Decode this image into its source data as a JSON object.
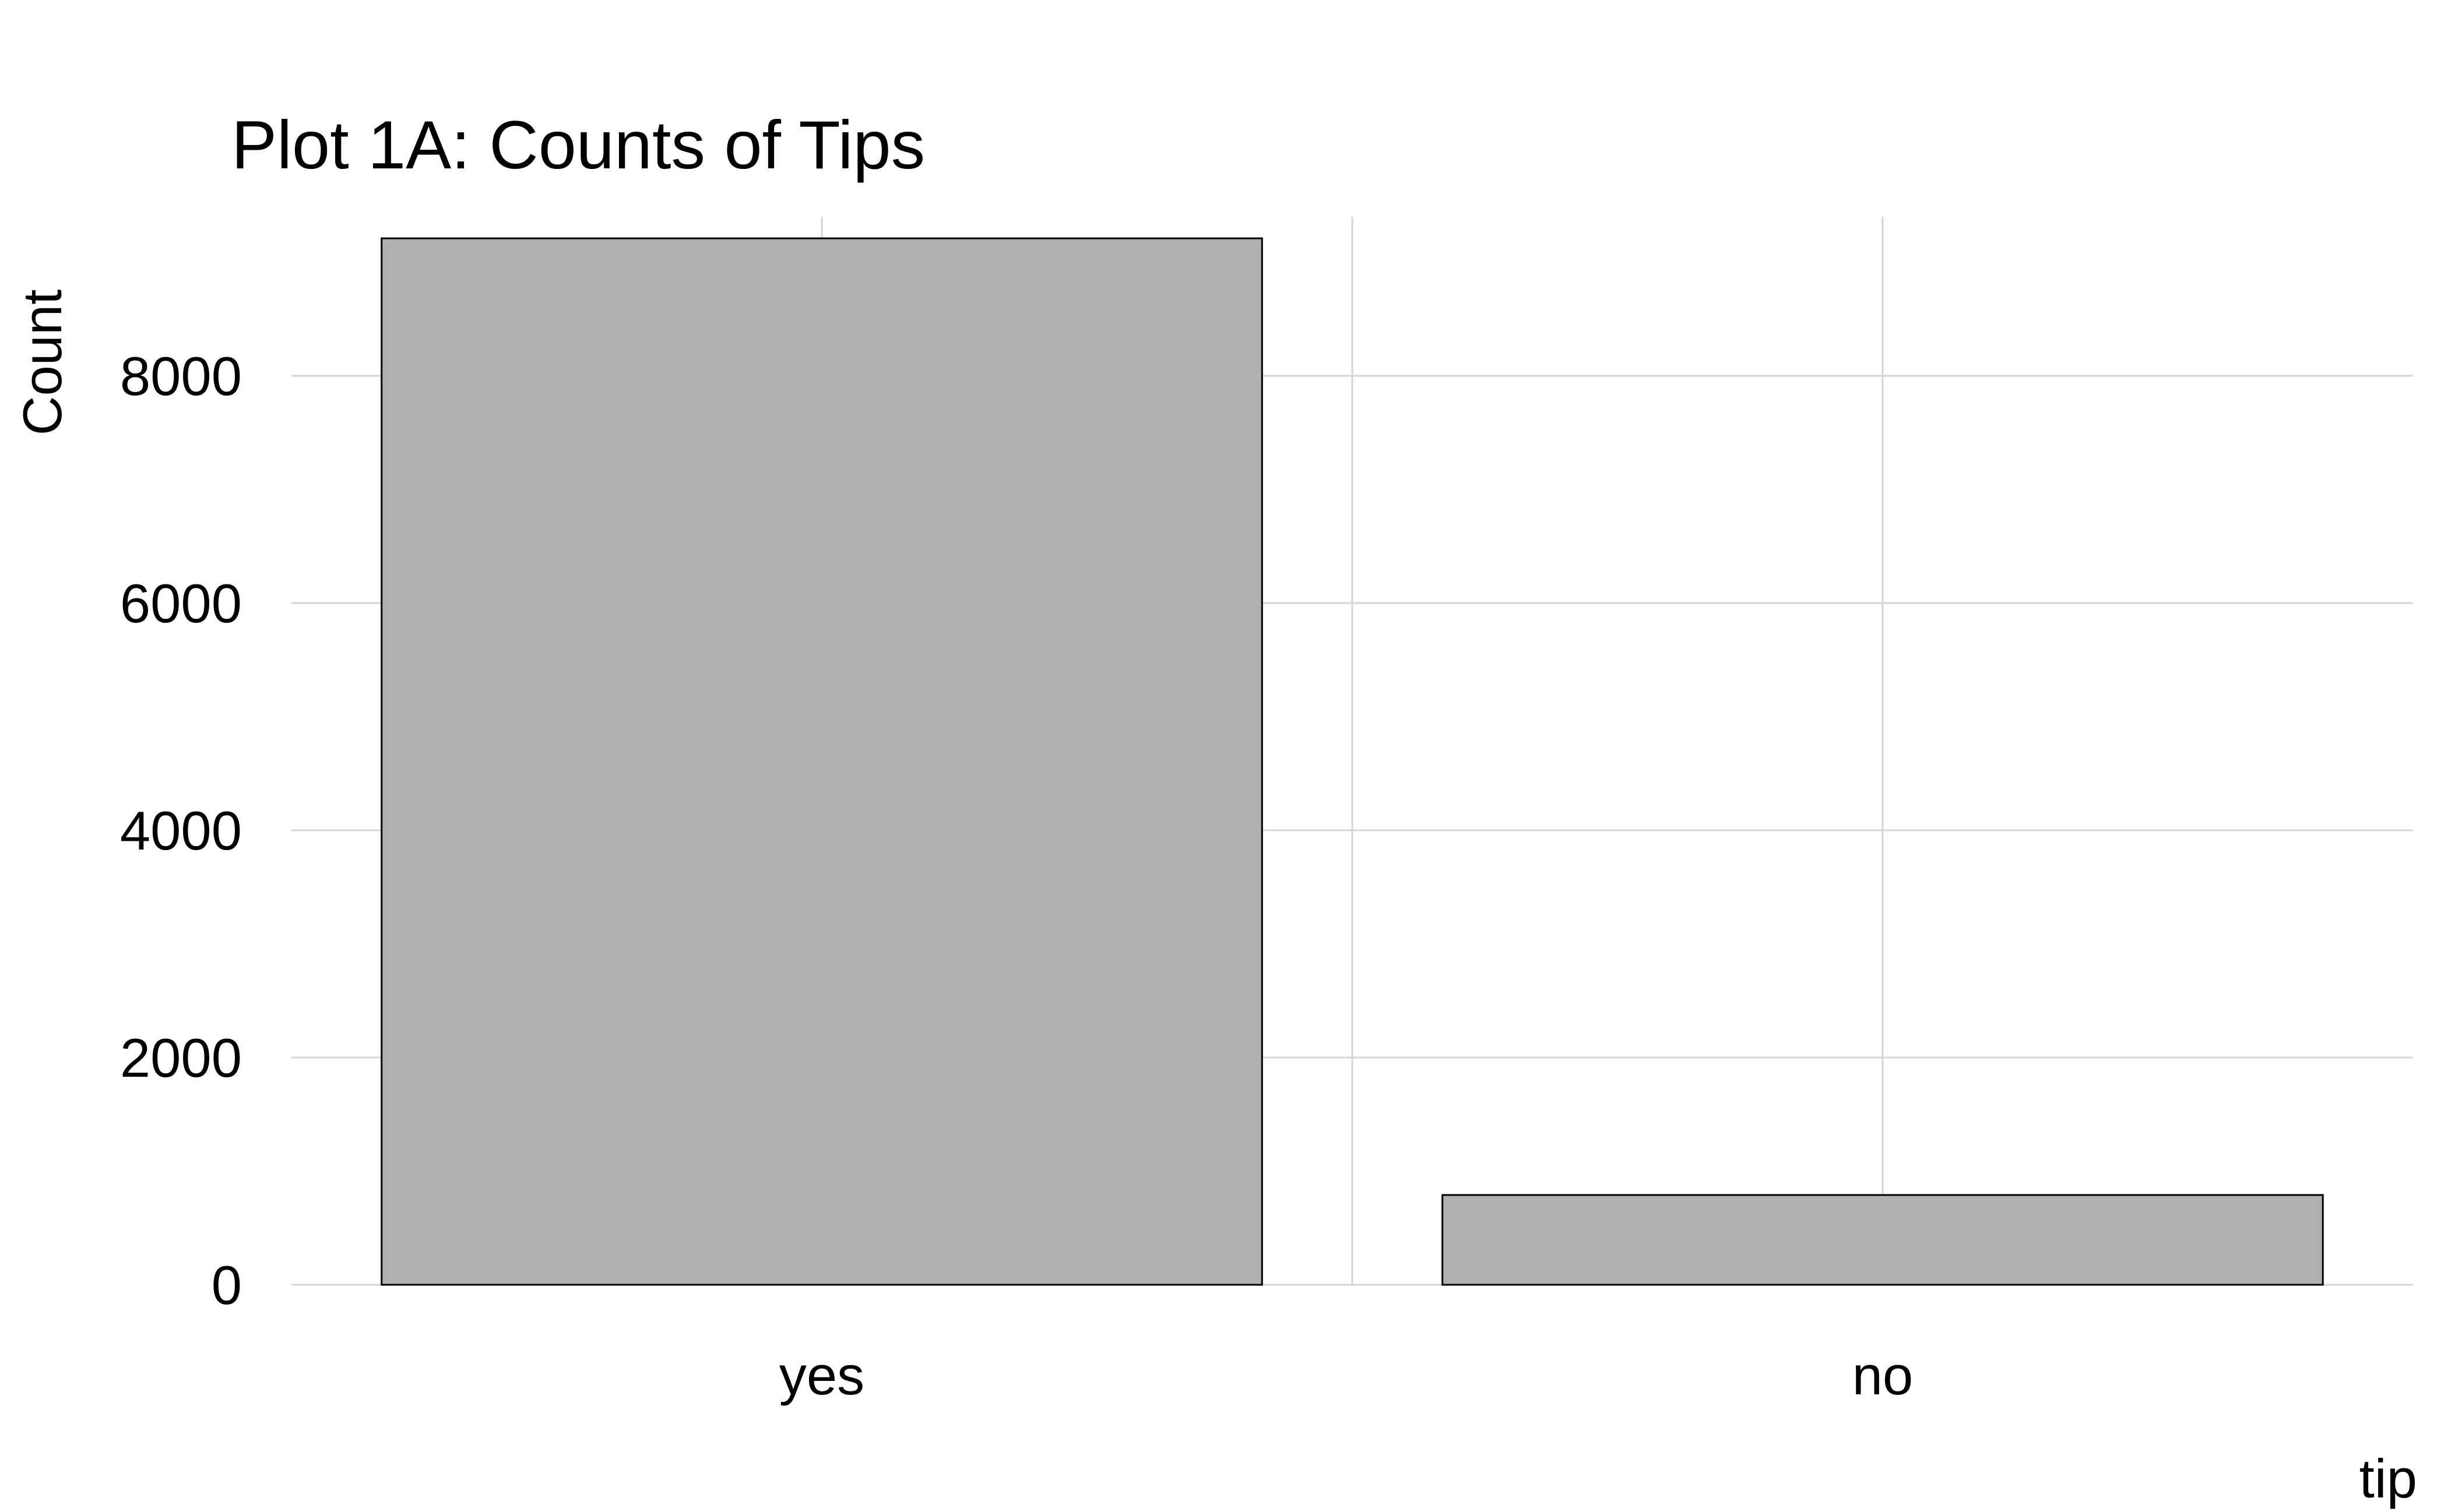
{
  "chart_data": {
    "type": "bar",
    "title": "Plot 1A: Counts of Tips",
    "xlabel": "tip",
    "ylabel": "Count",
    "categories": [
      "yes",
      "no"
    ],
    "values": [
      9210,
      790
    ],
    "ylim": [
      0,
      9400
    ],
    "yticks": [
      0,
      2000,
      4000,
      6000,
      8000
    ],
    "grid": true,
    "bar_fill": "#b0b0b0",
    "bar_outline": "#000000",
    "grid_color": "#d6d6d6"
  }
}
